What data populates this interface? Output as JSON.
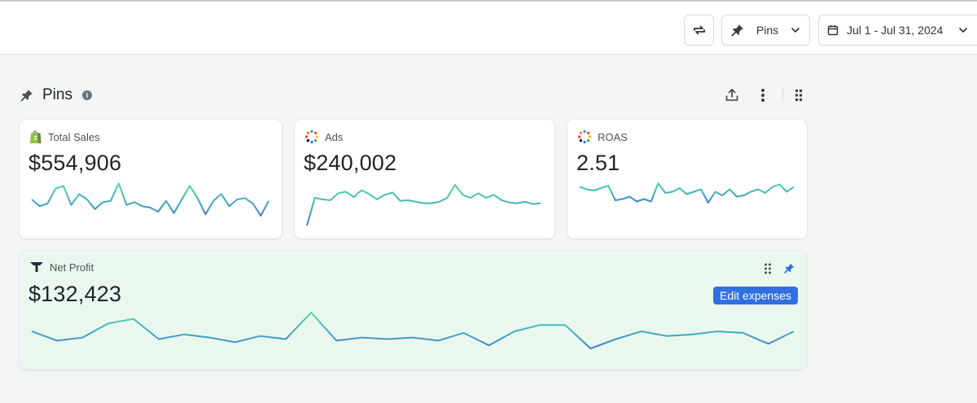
{
  "toolbar": {
    "pins_label": "Pins",
    "date_range": "Jul 1 - Jul 31, 2024"
  },
  "section": {
    "title": "Pins",
    "info_icon": "info-icon"
  },
  "cards": {
    "total_sales": {
      "label": "Total Sales",
      "value": "$554,906",
      "icon": "shopify-icon",
      "trend": [
        52,
        47,
        49,
        60,
        62,
        48,
        56,
        52,
        45,
        50,
        51,
        64,
        48,
        50,
        47,
        46,
        43,
        51,
        42,
        52,
        62,
        53,
        41,
        51,
        56,
        47,
        52,
        53,
        49,
        40,
        51
      ]
    },
    "ads": {
      "label": "Ads",
      "value": "$240,002",
      "icon": "ads-icon",
      "trend": [
        20,
        56,
        54,
        53,
        62,
        64,
        57,
        66,
        61,
        54,
        60,
        63,
        52,
        53,
        51,
        49,
        49,
        51,
        56,
        73,
        60,
        56,
        62,
        56,
        60,
        53,
        50,
        49,
        51,
        48,
        49
      ]
    },
    "roas": {
      "label": "ROAS",
      "value": "2.51",
      "icon": "ads-icon",
      "trend": [
        62,
        60,
        59,
        61,
        63,
        51,
        52,
        54,
        50,
        52,
        50,
        65,
        57,
        58,
        61,
        56,
        58,
        60,
        49,
        58,
        55,
        60,
        54,
        55,
        58,
        60,
        57,
        62,
        64,
        58,
        62
      ]
    },
    "net_profit": {
      "label": "Net Profit",
      "value": "$132,423",
      "icon": "triple-whale-icon",
      "edit_label": "Edit expenses",
      "trend": [
        60,
        54,
        56,
        65,
        68,
        55,
        58,
        56,
        53,
        57,
        55,
        72,
        54,
        56,
        55,
        56,
        54,
        59,
        51,
        60,
        64,
        64,
        49,
        55,
        60,
        57,
        58,
        60,
        59,
        52,
        60
      ]
    }
  },
  "colors": {
    "line_low": "#3b82d6",
    "line_high": "#4fdca0",
    "edit_button": "#2f6fe0",
    "profit_bg": "#eaf7ef"
  }
}
